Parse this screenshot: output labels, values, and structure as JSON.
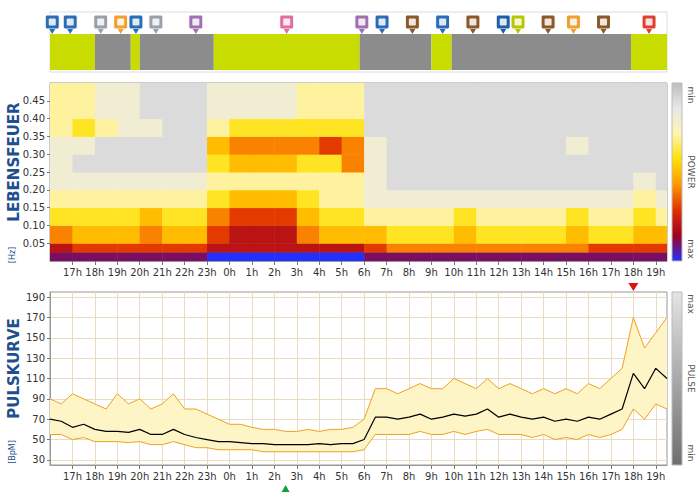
{
  "chart_data": [
    {
      "type": "heatmap",
      "title": "LEBENSFEUER",
      "ylabel": "[Hz]",
      "xlim": [
        16,
        43.5
      ],
      "xticks": [
        {
          "value": 17,
          "label": "17h"
        },
        {
          "value": 18,
          "label": "18h"
        },
        {
          "value": 19,
          "label": "19h"
        },
        {
          "value": 20,
          "label": "20h"
        },
        {
          "value": 21,
          "label": "21h"
        },
        {
          "value": 22,
          "label": "22h"
        },
        {
          "value": 23,
          "label": "23h"
        },
        {
          "value": 24,
          "label": "0h"
        },
        {
          "value": 25,
          "label": "1h"
        },
        {
          "value": 26,
          "label": "2h"
        },
        {
          "value": 27,
          "label": "3h"
        },
        {
          "value": 28,
          "label": "4h"
        },
        {
          "value": 29,
          "label": "5h"
        },
        {
          "value": 30,
          "label": "6h"
        },
        {
          "value": 31,
          "label": "7h"
        },
        {
          "value": 32,
          "label": "8h"
        },
        {
          "value": 33,
          "label": "9h"
        },
        {
          "value": 34,
          "label": "10h"
        },
        {
          "value": 35,
          "label": "11h"
        },
        {
          "value": 36,
          "label": "12h"
        },
        {
          "value": 37,
          "label": "13h"
        },
        {
          "value": 38,
          "label": "14h"
        },
        {
          "value": 39,
          "label": "15h"
        },
        {
          "value": 40,
          "label": "16h"
        },
        {
          "value": 41,
          "label": "17h"
        },
        {
          "value": 42,
          "label": "18h"
        },
        {
          "value": 43,
          "label": "19h"
        }
      ],
      "ylim": [
        0,
        0.5
      ],
      "yticks": [
        0.05,
        {
          "value": 0.1,
          "label": "0.10"
        },
        0.15,
        {
          "value": 0.2,
          "label": "0.20"
        },
        0.25,
        {
          "value": 0.3,
          "label": "0.30"
        },
        0.35,
        {
          "value": 0.4,
          "label": "0.40"
        },
        0.45
      ],
      "x_edges": [
        16,
        17,
        18,
        19,
        20,
        21,
        22,
        23,
        24,
        25,
        26,
        27,
        28,
        29,
        30,
        31,
        32,
        33,
        34,
        35,
        36,
        37,
        38,
        39,
        40,
        41,
        42,
        43,
        43.5
      ],
      "y_edges": [
        0,
        0.025,
        0.05,
        0.1,
        0.15,
        0.2,
        0.25,
        0.3,
        0.35,
        0.4,
        0.5
      ],
      "power": [
        [
          9,
          9,
          9,
          9,
          9,
          9,
          9,
          10,
          10,
          10,
          10,
          10,
          10,
          10,
          9,
          9,
          9,
          9,
          9,
          9,
          9,
          9,
          9,
          9,
          9,
          9,
          9,
          9
        ],
        [
          8,
          7,
          7,
          7,
          7,
          7,
          7,
          8,
          8,
          8,
          8,
          8,
          8,
          8,
          7,
          6,
          6,
          6,
          6,
          6,
          6,
          6,
          6,
          6,
          7,
          7,
          7,
          7
        ],
        [
          6,
          5,
          5,
          5,
          6,
          5,
          5,
          7,
          8,
          8,
          8,
          6,
          5,
          5,
          5,
          4,
          4,
          4,
          5,
          4,
          4,
          4,
          4,
          5,
          4,
          4,
          5,
          5
        ],
        [
          4,
          4,
          4,
          4,
          5,
          4,
          4,
          6,
          7,
          7,
          7,
          5,
          4,
          4,
          3,
          3,
          3,
          3,
          4,
          3,
          3,
          3,
          3,
          4,
          3,
          3,
          4,
          3
        ],
        [
          3,
          3,
          3,
          3,
          3,
          3,
          3,
          4,
          5,
          5,
          5,
          4,
          3,
          3,
          2,
          2,
          2,
          2,
          2,
          2,
          2,
          2,
          2,
          2,
          2,
          2,
          3,
          2
        ],
        [
          2,
          2,
          2,
          2,
          2,
          2,
          2,
          3,
          3,
          3,
          3,
          3,
          3,
          3,
          2,
          1,
          1,
          1,
          1,
          1,
          1,
          1,
          1,
          1,
          1,
          1,
          2,
          1
        ],
        [
          2,
          1,
          1,
          1,
          1,
          1,
          1,
          4,
          5,
          5,
          5,
          4,
          4,
          6,
          2,
          1,
          1,
          1,
          1,
          1,
          1,
          1,
          1,
          1,
          1,
          1,
          1,
          1
        ],
        [
          2,
          2,
          1,
          1,
          1,
          1,
          1,
          5,
          6,
          6,
          6,
          6,
          7,
          6,
          2,
          1,
          1,
          1,
          1,
          1,
          1,
          1,
          1,
          2,
          1,
          1,
          1,
          1
        ],
        [
          3,
          4,
          3,
          2,
          2,
          1,
          1,
          3,
          4,
          4,
          4,
          4,
          4,
          4,
          1,
          1,
          1,
          1,
          1,
          1,
          1,
          1,
          1,
          1,
          1,
          1,
          1,
          1
        ],
        [
          3,
          3,
          2,
          2,
          1,
          1,
          1,
          2,
          2,
          2,
          2,
          3,
          3,
          3,
          1,
          1,
          1,
          1,
          1,
          1,
          1,
          1,
          1,
          1,
          1,
          1,
          1,
          1
        ]
      ],
      "colorbar": {
        "range": [
          0,
          10
        ],
        "labels": [
          "min",
          "POWER",
          "max"
        ],
        "colors": [
          "#bdbdbd",
          "#e8e8e8",
          "#fff4b0",
          "#ffe000",
          "#ff9800",
          "#e03000",
          "#a00020",
          "#2030ff"
        ]
      }
    },
    {
      "type": "line",
      "title": "PULSKURVE",
      "ylabel": "[BpM]",
      "grid": true,
      "xlim": [
        16,
        43.5
      ],
      "xticks": [
        {
          "value": 17,
          "label": "17h"
        },
        {
          "value": 18,
          "label": "18h"
        },
        {
          "value": 19,
          "label": "19h"
        },
        {
          "value": 20,
          "label": "20h"
        },
        {
          "value": 21,
          "label": "21h"
        },
        {
          "value": 22,
          "label": "22h"
        },
        {
          "value": 23,
          "label": "23h"
        },
        {
          "value": 24,
          "label": "0h"
        },
        {
          "value": 25,
          "label": "1h"
        },
        {
          "value": 26,
          "label": "2h"
        },
        {
          "value": 27,
          "label": "3h"
        },
        {
          "value": 28,
          "label": "4h"
        },
        {
          "value": 29,
          "label": "5h"
        },
        {
          "value": 30,
          "label": "6h"
        },
        {
          "value": 31,
          "label": "7h"
        },
        {
          "value": 32,
          "label": "8h"
        },
        {
          "value": 33,
          "label": "9h"
        },
        {
          "value": 34,
          "label": "10h"
        },
        {
          "value": 35,
          "label": "11h"
        },
        {
          "value": 36,
          "label": "12h"
        },
        {
          "value": 37,
          "label": "13h"
        },
        {
          "value": 38,
          "label": "14h"
        },
        {
          "value": 39,
          "label": "15h"
        },
        {
          "value": 40,
          "label": "16h"
        },
        {
          "value": 41,
          "label": "17h"
        },
        {
          "value": 42,
          "label": "18h"
        },
        {
          "value": 43,
          "label": "19h"
        }
      ],
      "ylim": [
        25,
        195
      ],
      "yticks": [
        30,
        50,
        70,
        90,
        110,
        130,
        150,
        170,
        190
      ],
      "x": [
        16,
        16.5,
        17,
        17.5,
        18,
        18.5,
        19,
        19.5,
        20,
        20.5,
        21,
        21.5,
        22,
        22.5,
        23,
        23.5,
        24,
        24.5,
        25,
        25.5,
        26,
        26.5,
        27,
        27.5,
        28,
        28.5,
        29,
        29.5,
        30,
        30.5,
        31,
        31.5,
        32,
        32.5,
        33,
        33.5,
        34,
        34.5,
        35,
        35.5,
        36,
        36.5,
        37,
        37.5,
        38,
        38.5,
        39,
        39.5,
        40,
        40.5,
        41,
        41.5,
        42,
        42.5,
        43,
        43.5
      ],
      "series": [
        {
          "color": "#000000",
          "values": [
            70,
            68,
            62,
            65,
            60,
            58,
            58,
            57,
            60,
            55,
            55,
            60,
            55,
            52,
            50,
            48,
            48,
            47,
            46,
            46,
            45,
            45,
            45,
            45,
            46,
            45,
            46,
            46,
            50,
            72,
            72,
            70,
            72,
            75,
            70,
            72,
            75,
            73,
            75,
            80,
            72,
            75,
            72,
            70,
            72,
            68,
            70,
            68,
            72,
            70,
            75,
            80,
            115,
            100,
            120,
            110
          ]
        },
        {
          "color": "#f0a020",
          "values": [
            90,
            85,
            95,
            90,
            85,
            80,
            95,
            85,
            90,
            80,
            85,
            95,
            80,
            80,
            75,
            70,
            65,
            65,
            62,
            60,
            60,
            58,
            58,
            60,
            58,
            60,
            60,
            62,
            70,
            100,
            100,
            95,
            100,
            105,
            100,
            100,
            110,
            105,
            100,
            110,
            100,
            105,
            100,
            95,
            100,
            95,
            100,
            95,
            105,
            100,
            110,
            120,
            170,
            140,
            155,
            170
          ]
        },
        {
          "color": "#f0a020",
          "values": [
            55,
            55,
            50,
            52,
            48,
            48,
            48,
            47,
            48,
            45,
            45,
            48,
            45,
            42,
            42,
            40,
            40,
            40,
            40,
            38,
            38,
            38,
            38,
            38,
            38,
            38,
            38,
            38,
            40,
            55,
            55,
            55,
            55,
            58,
            55,
            55,
            58,
            55,
            58,
            60,
            55,
            55,
            55,
            52,
            55,
            50,
            52,
            50,
            55,
            52,
            55,
            60,
            80,
            70,
            85,
            80
          ]
        }
      ],
      "side_bar": {
        "labels": [
          "max",
          "PULSE",
          "min"
        ]
      },
      "triangles": [
        {
          "x": 42,
          "color": "#e01010",
          "side": "top"
        },
        {
          "x": 26.5,
          "color": "#10a040",
          "side": "bottom"
        }
      ]
    }
  ],
  "activity_bar": {
    "segments": [
      {
        "start": 16,
        "end": 18,
        "color": "#c8dc00"
      },
      {
        "start": 18,
        "end": 19.6,
        "color": "#8c8c8c"
      },
      {
        "start": 19.6,
        "end": 20,
        "color": "#c8dc00"
      },
      {
        "start": 20,
        "end": 23.3,
        "color": "#8c8c8c"
      },
      {
        "start": 23.3,
        "end": 29.8,
        "color": "#c8dc00"
      },
      {
        "start": 29.8,
        "end": 33,
        "color": "#8c8c8c"
      },
      {
        "start": 33,
        "end": 33.9,
        "color": "#c8dc00"
      },
      {
        "start": 33.9,
        "end": 41.9,
        "color": "#8c8c8c"
      },
      {
        "start": 41.9,
        "end": 43.5,
        "color": "#c8dc00"
      }
    ],
    "icons": [
      {
        "x": 16.1,
        "color": "#2a6db5"
      },
      {
        "x": 16.9,
        "color": "#2a6db5"
      },
      {
        "x": 18.26,
        "color": "#9aa0aa"
      },
      {
        "x": 19.15,
        "color": "#f0a030"
      },
      {
        "x": 19.83,
        "color": "#2a6db5"
      },
      {
        "x": 20.72,
        "color": "#9aa0aa"
      },
      {
        "x": 22.5,
        "color": "#a070b0"
      },
      {
        "x": 26.55,
        "color": "#e070a0"
      },
      {
        "x": 29.9,
        "color": "#a070b0"
      },
      {
        "x": 30.8,
        "color": "#2a6db5"
      },
      {
        "x": 32.15,
        "color": "#8a5a2b"
      },
      {
        "x": 33.5,
        "color": "#2a6db5"
      },
      {
        "x": 34.85,
        "color": "#8a5a2b"
      },
      {
        "x": 36.2,
        "color": "#1f5fa8"
      },
      {
        "x": 36.86,
        "color": "#b8c800"
      },
      {
        "x": 38.2,
        "color": "#8a5a2b"
      },
      {
        "x": 39.33,
        "color": "#f0a030"
      },
      {
        "x": 40.67,
        "color": "#8a5a2b"
      },
      {
        "x": 42.7,
        "color": "#e04030"
      }
    ]
  }
}
